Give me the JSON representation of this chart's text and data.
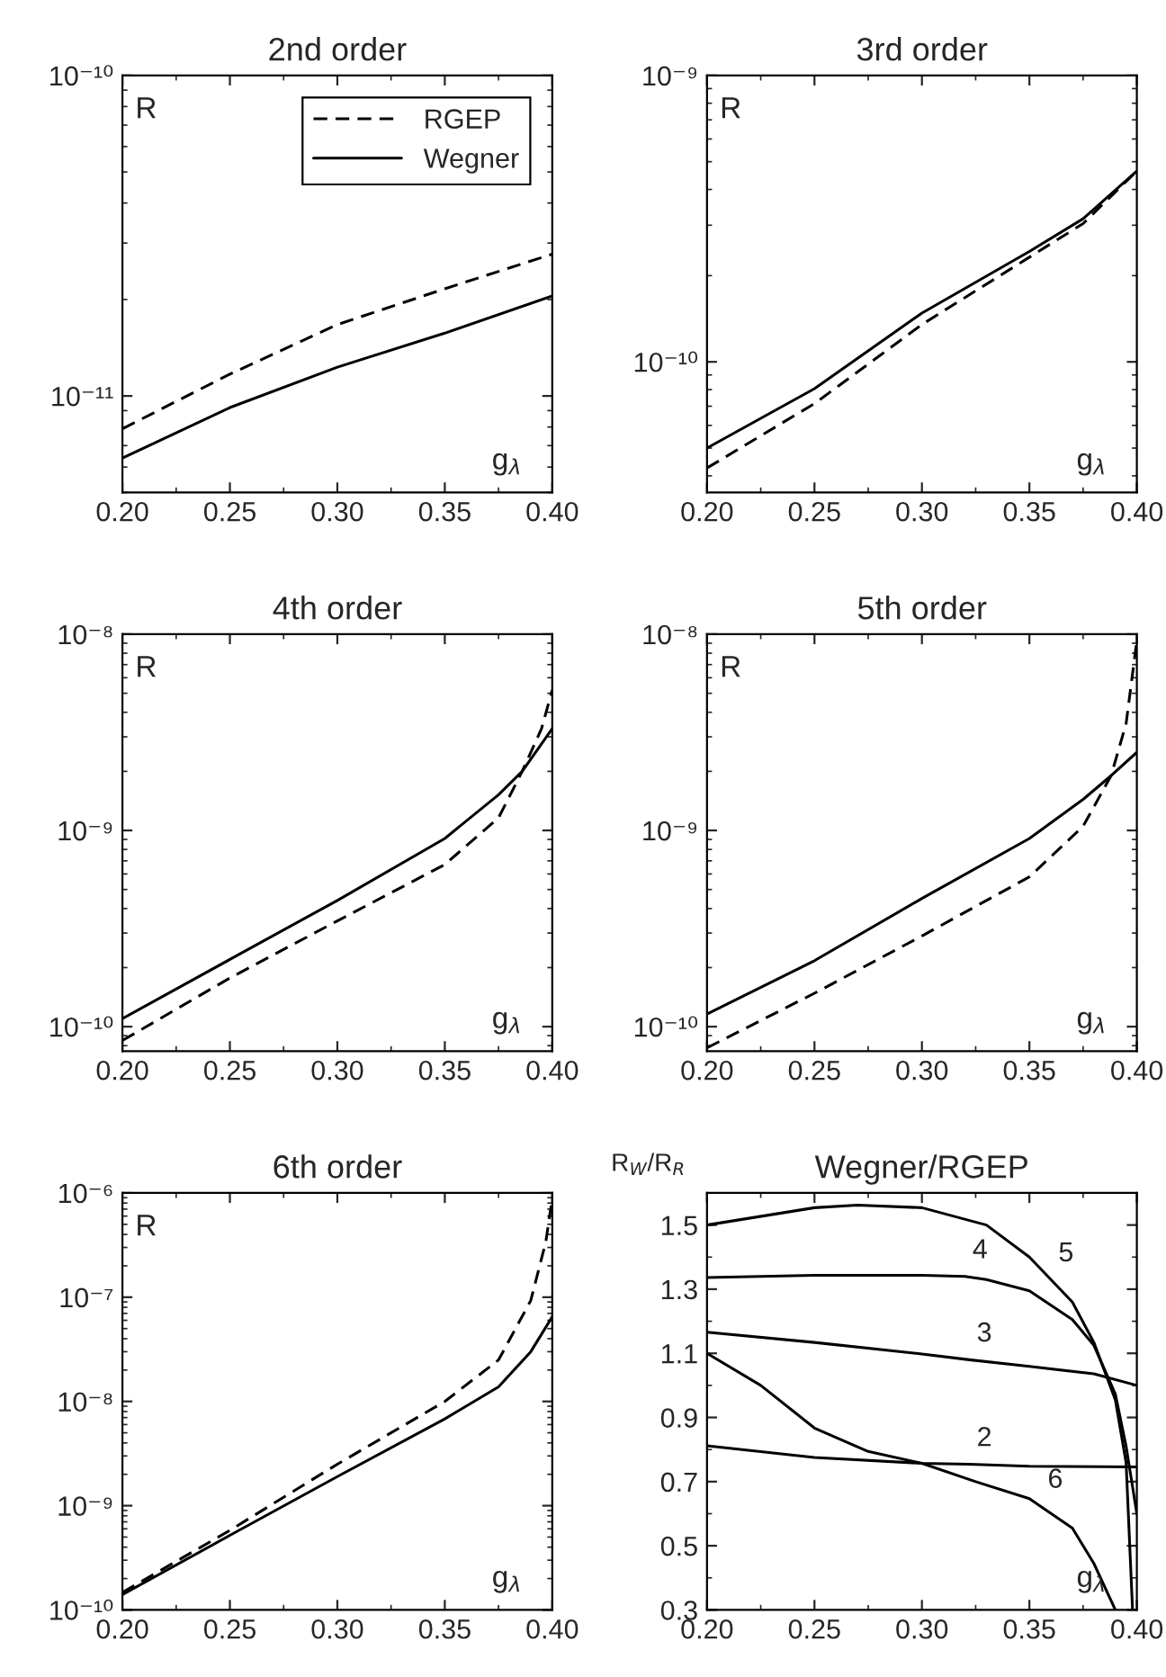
{
  "chart_data": [
    {
      "type": "line",
      "title": "2nd order",
      "xlabel": "g$_{λ}$",
      "ylabel": "R",
      "log": "y",
      "legend": "top right",
      "xlim": [
        0.2,
        0.4
      ],
      "xticks": [
        {
          "value": 0.2,
          "label": "0.20"
        },
        {
          "value": 0.25,
          "label": "0.25"
        },
        {
          "value": 0.3,
          "label": "0.30"
        },
        {
          "value": 0.35,
          "label": "0.35"
        },
        {
          "value": 0.4,
          "label": "0.40"
        }
      ],
      "ylim": [
        5e-12,
        1e-10
      ],
      "yticks": [
        {
          "value": 1e-11,
          "label": "10⁻¹¹"
        },
        {
          "value": 1e-10,
          "label": "10⁻¹⁰"
        }
      ],
      "series": [
        {
          "name": "RGEP",
          "color": "#000000",
          "line_style": "dashed",
          "x": [
            0.2,
            0.25,
            0.3,
            0.35,
            0.4
          ],
          "values": [
            7.9e-12,
            1.17e-11,
            1.67e-11,
            2.16e-11,
            2.77e-11
          ]
        },
        {
          "name": "Wegner",
          "color": "#000000",
          "line_style": "solid",
          "x": [
            0.2,
            0.25,
            0.3,
            0.35,
            0.4
          ],
          "values": [
            6.4e-12,
            9.2e-12,
            1.23e-11,
            1.57e-11,
            2.05e-11
          ]
        }
      ]
    },
    {
      "type": "line",
      "title": "3rd order",
      "xlabel": "g$_{λ}$",
      "ylabel": "R",
      "log": "y",
      "xlim": [
        0.2,
        0.4
      ],
      "xticks": [
        {
          "value": 0.2,
          "label": "0.20"
        },
        {
          "value": 0.25,
          "label": "0.25"
        },
        {
          "value": 0.3,
          "label": "0.30"
        },
        {
          "value": 0.35,
          "label": "0.35"
        },
        {
          "value": 0.4,
          "label": "0.40"
        }
      ],
      "ylim": [
        3.5e-11,
        1e-09
      ],
      "yticks": [
        {
          "value": 1e-10,
          "label": "10⁻¹⁰"
        },
        {
          "value": 1e-09,
          "label": "10⁻⁹"
        }
      ],
      "series": [
        {
          "color": "#000000",
          "line_style": "dashed",
          "x": [
            0.2,
            0.25,
            0.3,
            0.35,
            0.375,
            0.4
          ],
          "values": [
            4.26e-11,
            7.15e-11,
            1.35e-10,
            2.32e-10,
            3.04e-10,
            4.64e-10
          ]
        },
        {
          "color": "#000000",
          "line_style": "solid",
          "x": [
            0.2,
            0.25,
            0.3,
            0.35,
            0.375,
            0.4
          ],
          "values": [
            5e-11,
            8.06e-11,
            1.48e-10,
            2.43e-10,
            3.16e-10,
            4.64e-10
          ]
        }
      ]
    },
    {
      "type": "line",
      "title": "4th order",
      "xlabel": "g$_{λ}$",
      "ylabel": "R",
      "log": "y",
      "xlim": [
        0.2,
        0.4
      ],
      "xticks": [
        {
          "value": 0.2,
          "label": "0.20"
        },
        {
          "value": 0.25,
          "label": "0.25"
        },
        {
          "value": 0.3,
          "label": "0.30"
        },
        {
          "value": 0.35,
          "label": "0.35"
        },
        {
          "value": 0.4,
          "label": "0.40"
        }
      ],
      "ylim": [
        7.5e-11,
        1e-08
      ],
      "yticks": [
        {
          "value": 1e-10,
          "label": "10⁻¹⁰"
        },
        {
          "value": 1e-09,
          "label": "10⁻⁹"
        },
        {
          "value": 1e-08,
          "label": "10⁻⁸"
        }
      ],
      "series": [
        {
          "color": "#000000",
          "line_style": "dashed",
          "x": [
            0.2,
            0.25,
            0.3,
            0.35,
            0.375,
            0.386,
            0.395,
            0.4
          ],
          "values": [
            8.5e-11,
            1.77e-10,
            3.46e-10,
            6.7e-10,
            1.16e-09,
            2e-09,
            3.3e-09,
            5.2e-09
          ]
        },
        {
          "color": "#000000",
          "line_style": "solid",
          "x": [
            0.2,
            0.25,
            0.3,
            0.35,
            0.375,
            0.386,
            0.4
          ],
          "values": [
            1.1e-10,
            2.2e-10,
            4.4e-10,
            9.1e-10,
            1.52e-09,
            2e-09,
            3.3e-09
          ]
        }
      ]
    },
    {
      "type": "line",
      "title": "5th order",
      "xlabel": "g$_{λ}$",
      "ylabel": "R",
      "log": "y",
      "xlim": [
        0.2,
        0.4
      ],
      "xticks": [
        {
          "value": 0.2,
          "label": "0.20"
        },
        {
          "value": 0.25,
          "label": "0.25"
        },
        {
          "value": 0.3,
          "label": "0.30"
        },
        {
          "value": 0.35,
          "label": "0.35"
        },
        {
          "value": 0.4,
          "label": "0.40"
        }
      ],
      "ylim": [
        7.5e-11,
        1e-08
      ],
      "yticks": [
        {
          "value": 1e-10,
          "label": "10⁻¹⁰"
        },
        {
          "value": 1e-09,
          "label": "10⁻⁹"
        },
        {
          "value": 1e-08,
          "label": "10⁻⁸"
        }
      ],
      "series": [
        {
          "color": "#000000",
          "line_style": "dashed",
          "x": [
            0.2,
            0.25,
            0.3,
            0.35,
            0.375,
            0.388,
            0.395,
            0.4
          ],
          "values": [
            7.8e-11,
            1.48e-10,
            2.9e-10,
            5.8e-10,
            1.05e-09,
            1.9e-09,
            3.5e-09,
            9.3e-09
          ]
        },
        {
          "color": "#000000",
          "line_style": "solid",
          "x": [
            0.2,
            0.25,
            0.3,
            0.35,
            0.375,
            0.388,
            0.4
          ],
          "values": [
            1.16e-10,
            2.17e-10,
            4.5e-10,
            9.1e-10,
            1.44e-09,
            1.9e-09,
            2.5e-09
          ]
        }
      ]
    },
    {
      "type": "line",
      "title": "6th order",
      "xlabel": "g$_{λ}$",
      "ylabel": "R",
      "log": "y",
      "xlim": [
        0.2,
        0.4
      ],
      "xticks": [
        {
          "value": 0.2,
          "label": "0.20"
        },
        {
          "value": 0.25,
          "label": "0.25"
        },
        {
          "value": 0.3,
          "label": "0.30"
        },
        {
          "value": 0.35,
          "label": "0.35"
        },
        {
          "value": 0.4,
          "label": "0.40"
        }
      ],
      "ylim": [
        1e-10,
        1e-06
      ],
      "yticks": [
        {
          "value": 1e-10,
          "label": "10⁻¹⁰"
        },
        {
          "value": 1e-09,
          "label": "10⁻⁹"
        },
        {
          "value": 1e-08,
          "label": "10⁻⁸"
        },
        {
          "value": 1e-07,
          "label": "10⁻⁷"
        },
        {
          "value": 1e-06,
          "label": "10⁻⁶"
        }
      ],
      "series": [
        {
          "color": "#000000",
          "line_style": "dashed",
          "x": [
            0.2,
            0.25,
            0.3,
            0.35,
            0.375,
            0.39,
            0.397,
            0.4
          ],
          "values": [
            1.47e-10,
            5.8e-10,
            2.5e-09,
            1e-08,
            2.5e-08,
            9.3e-08,
            3.4e-07,
            8.9e-07
          ]
        },
        {
          "color": "#000000",
          "line_style": "solid",
          "x": [
            0.2,
            0.25,
            0.3,
            0.35,
            0.375,
            0.39,
            0.4
          ],
          "values": [
            1.4e-10,
            5.2e-10,
            1.9e-09,
            6.8e-09,
            1.38e-08,
            3e-08,
            6.5e-08
          ]
        }
      ]
    },
    {
      "type": "line",
      "title": "Wegner/RGEP",
      "xlabel": "g$_{λ}$",
      "ylabel": "R$_{W}$/R$_{R}$",
      "xlim": [
        0.2,
        0.4
      ],
      "xticks": [
        {
          "value": 0.2,
          "label": "0.20"
        },
        {
          "value": 0.25,
          "label": "0.25"
        },
        {
          "value": 0.3,
          "label": "0.30"
        },
        {
          "value": 0.35,
          "label": "0.35"
        },
        {
          "value": 0.4,
          "label": "0.40"
        }
      ],
      "ylim": [
        0.3,
        1.6
      ],
      "yticks": [
        0.3,
        0.5,
        0.7,
        0.9,
        1.1,
        1.3,
        1.5
      ],
      "annotations": [
        {
          "text": "2",
          "x": 0.322,
          "y": 0.754
        },
        {
          "text": "3",
          "x": 0.322,
          "y": 1.08
        },
        {
          "text": "4",
          "x": 0.32,
          "y": 1.34
        },
        {
          "text": "5",
          "x": 0.36,
          "y": 1.33
        },
        {
          "text": "6",
          "x": 0.355,
          "y": 0.624
        }
      ],
      "series": [
        {
          "color": "#000000",
          "line_style": "solid",
          "x": [
            0.2,
            0.25,
            0.3,
            0.322,
            0.35,
            0.4
          ],
          "values": [
            0.812,
            0.775,
            0.757,
            0.754,
            0.748,
            0.746
          ]
        },
        {
          "color": "#000000",
          "line_style": "solid",
          "x": [
            0.2,
            0.25,
            0.3,
            0.322,
            0.35,
            0.38,
            0.4
          ],
          "values": [
            1.166,
            1.134,
            1.098,
            1.08,
            1.059,
            1.036,
            1.0
          ]
        },
        {
          "color": "#000000",
          "line_style": "solid",
          "x": [
            0.2,
            0.25,
            0.3,
            0.32,
            0.33,
            0.35,
            0.37,
            0.38,
            0.39,
            0.395,
            0.4
          ],
          "values": [
            1.336,
            1.343,
            1.343,
            1.34,
            1.33,
            1.295,
            1.205,
            1.125,
            0.973,
            0.81,
            0.6
          ]
        },
        {
          "color": "#000000",
          "line_style": "solid",
          "x": [
            0.2,
            0.25,
            0.27,
            0.3,
            0.33,
            0.35,
            0.36,
            0.37,
            0.38,
            0.39,
            0.395,
            0.398
          ],
          "values": [
            1.5,
            1.554,
            1.562,
            1.554,
            1.5,
            1.4,
            1.33,
            1.26,
            1.134,
            0.955,
            0.759,
            0.3
          ]
        },
        {
          "color": "#000000",
          "line_style": "solid",
          "x": [
            0.2,
            0.225,
            0.25,
            0.275,
            0.3,
            0.325,
            0.35,
            0.355,
            0.37,
            0.38,
            0.39
          ],
          "values": [
            1.1,
            1.0,
            0.867,
            0.794,
            0.757,
            0.7,
            0.647,
            0.624,
            0.555,
            0.445,
            0.3
          ]
        }
      ]
    }
  ]
}
